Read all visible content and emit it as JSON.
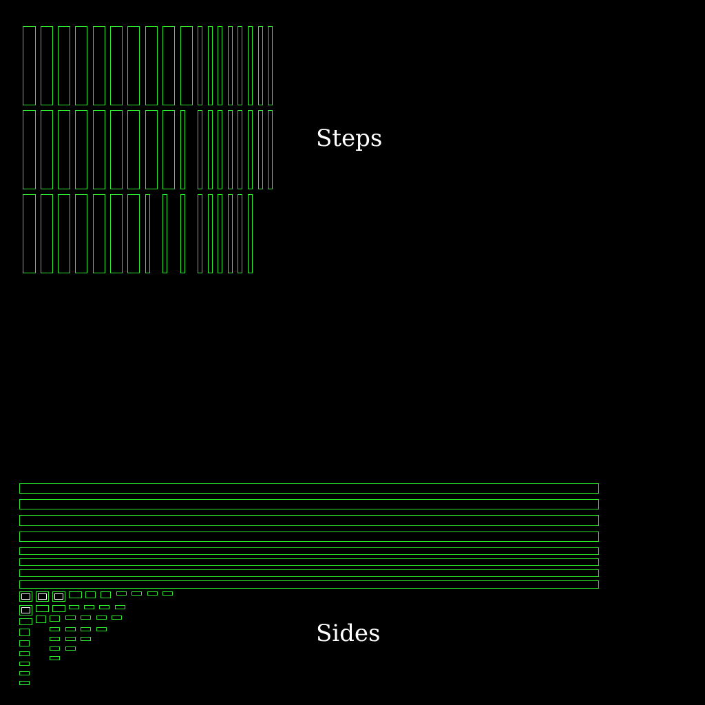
{
  "labels": {
    "steps": "Steps",
    "sides": "Sides"
  },
  "colors": {
    "background": "#000000",
    "stroke": "#2ee82e",
    "highlight": "#ffffff",
    "text": "#ffffff"
  }
}
